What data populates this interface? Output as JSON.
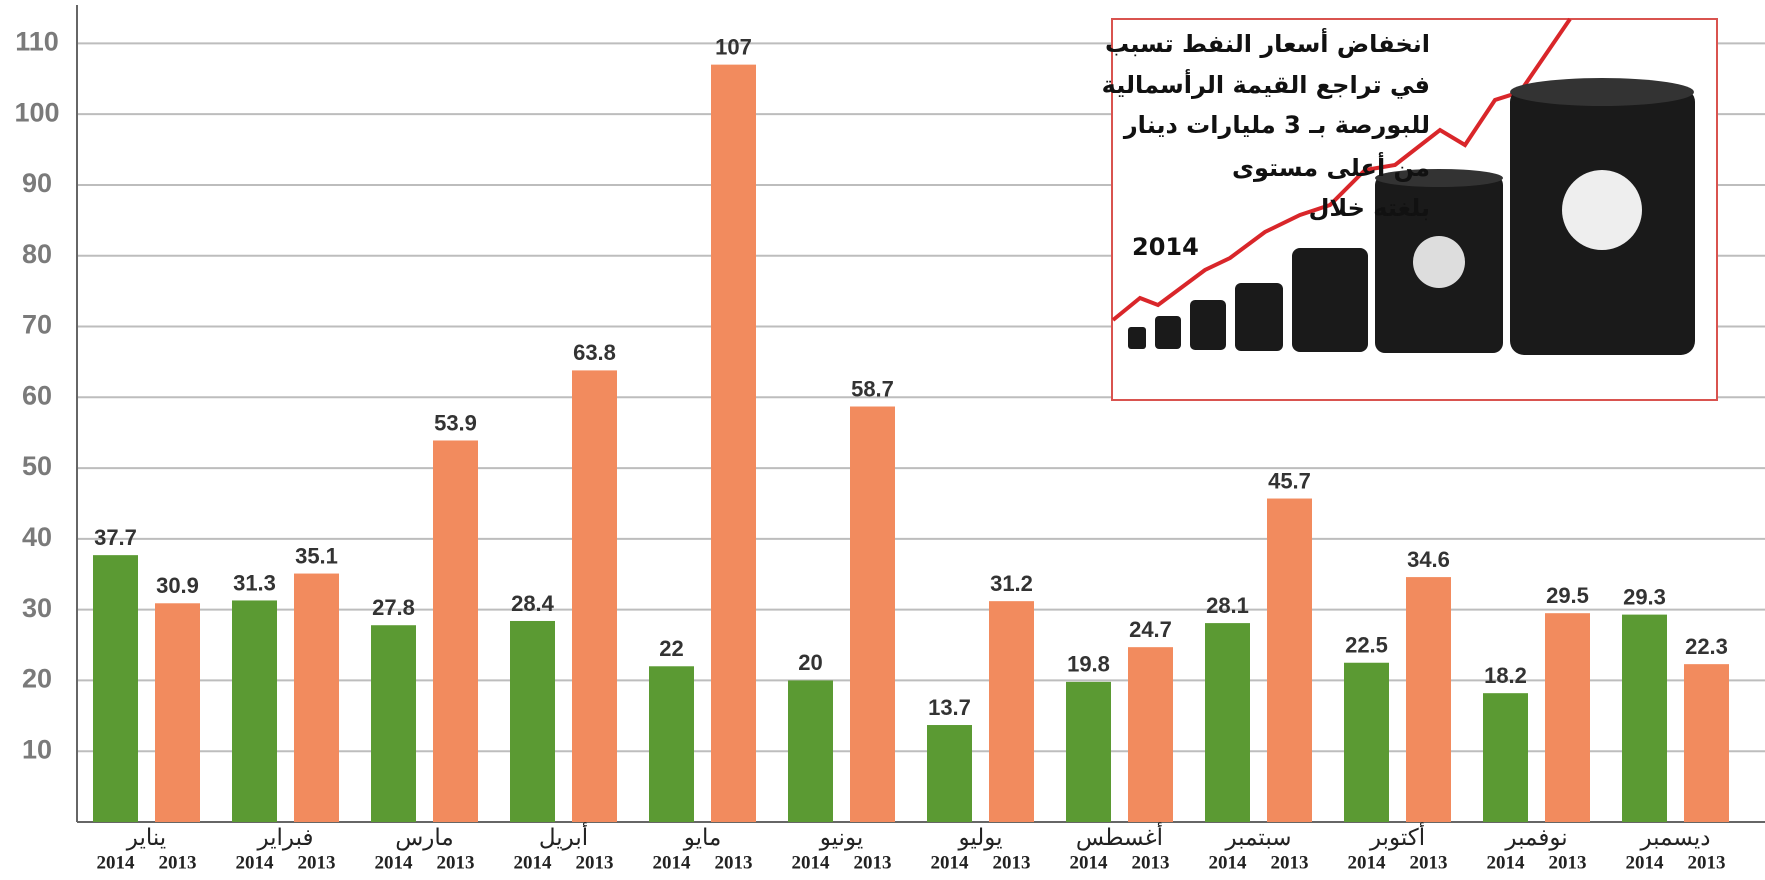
{
  "chart_data": {
    "type": "bar",
    "categories": [
      "يناير",
      "فبراير",
      "مارس",
      "أبريل",
      "مايو",
      "يونيو",
      "يوليو",
      "أغسطس",
      "سبتمبر",
      "أكتوبر",
      "نوفمبر",
      "ديسمبر"
    ],
    "series": [
      {
        "name": "2014",
        "color": "#5b9a33",
        "values": [
          37.7,
          31.3,
          27.8,
          28.4,
          22,
          20,
          13.7,
          19.8,
          28.1,
          22.5,
          18.2,
          29.3
        ]
      },
      {
        "name": "2013",
        "color": "#f28b5e",
        "values": [
          30.9,
          35.1,
          53.9,
          63.8,
          107,
          58.7,
          31.2,
          24.7,
          45.7,
          34.6,
          29.5,
          22.3
        ]
      }
    ],
    "ylim": [
      0,
      115
    ],
    "yticks": [
      10,
      20,
      30,
      40,
      50,
      60,
      70,
      80,
      90,
      100,
      110
    ],
    "grid": true,
    "annotation": [
      "انخفاض أسعار النفط تسبب",
      "في تراجع القيمة الرأسمالية",
      "للبورصة بـ 3 مليارات دينار",
      "من أعلى مستوى",
      "بلغته خلال",
      "2014"
    ]
  }
}
